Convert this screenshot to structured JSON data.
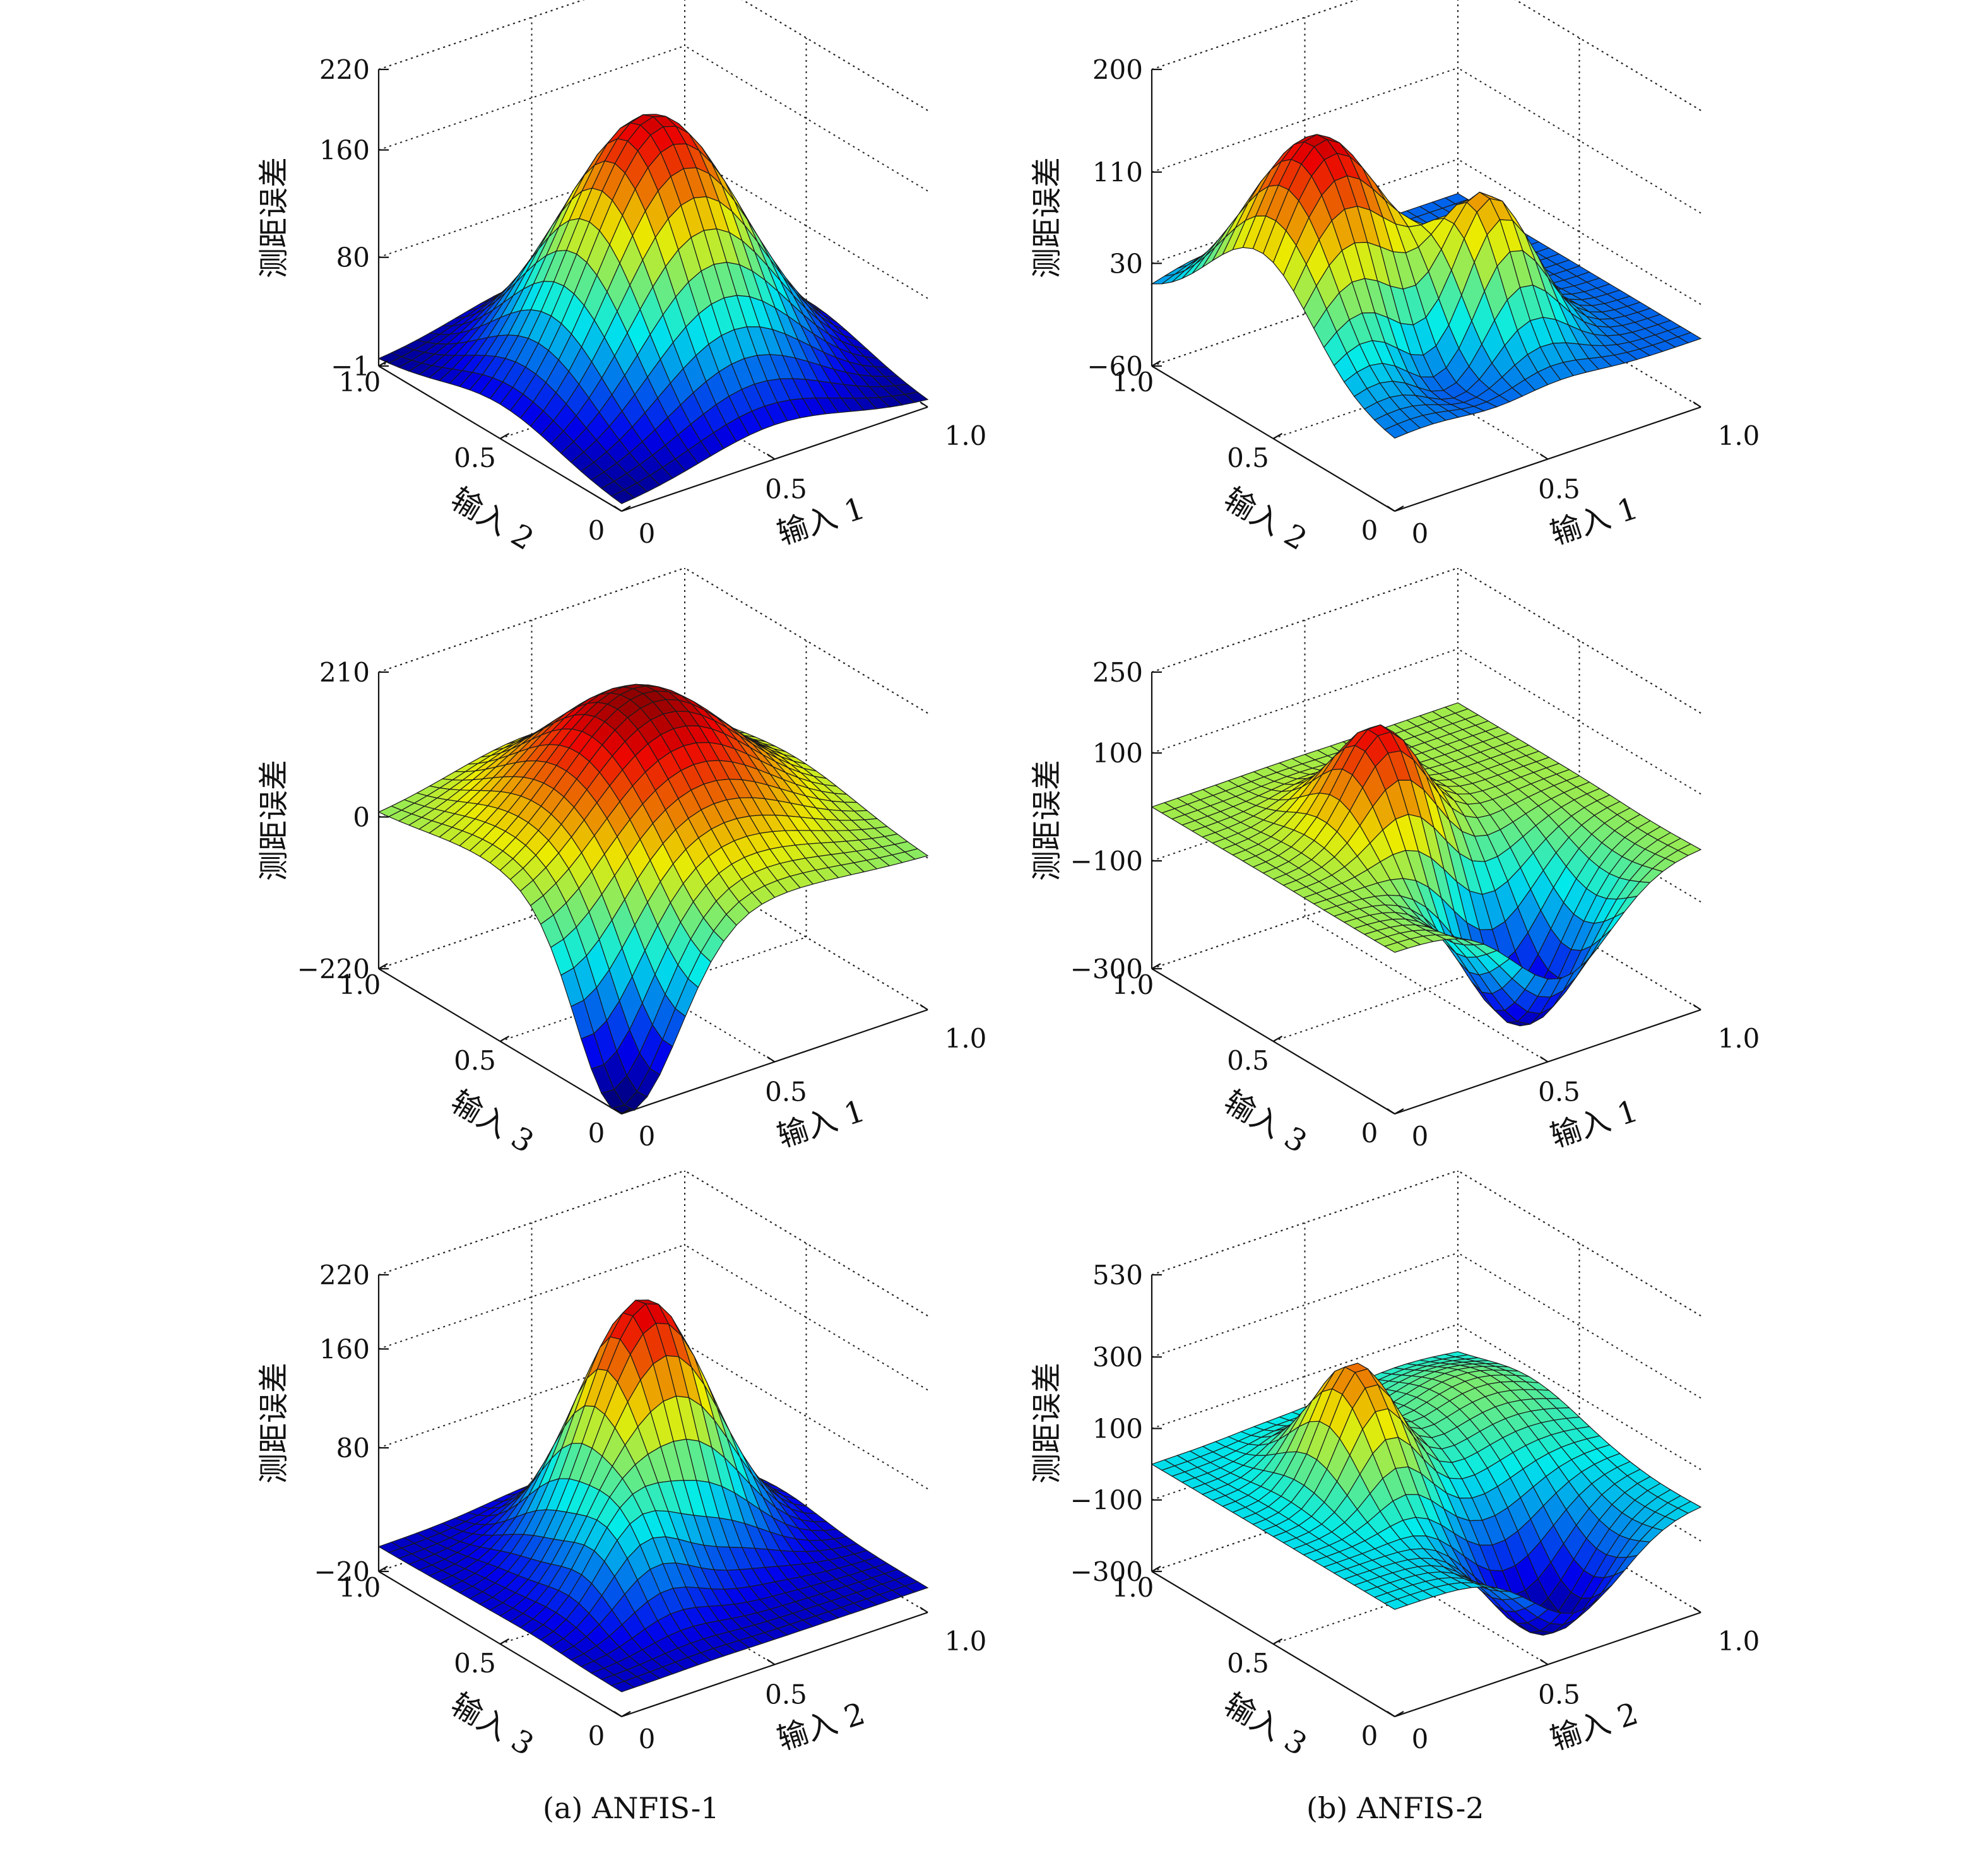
{
  "figure": {
    "caption_a": "(a) ANFIS-1",
    "caption_b": "(b) ANFIS-2"
  },
  "chart_data": [
    {
      "type": "surface",
      "panel": "a-1",
      "zlabel": "测距误差",
      "xlabel": "输入 1",
      "ylabel": "输入 2",
      "zticks": [
        "−1",
        "80",
        "160",
        "220"
      ],
      "zlim": [
        -1,
        220
      ],
      "xticks": [
        "0",
        "0.5",
        "1.0"
      ],
      "yticks": [
        "0",
        "0.5",
        "1.0"
      ],
      "x_range": [
        0,
        1
      ],
      "y_range": [
        0,
        1
      ],
      "surface_model": {
        "base": 2,
        "bumps": [
          {
            "x": 0.5,
            "y": 0.5,
            "amp": 198,
            "sx": 0.24,
            "sy": 0.24
          }
        ]
      }
    },
    {
      "type": "surface",
      "panel": "b-1",
      "zlabel": "测距误差",
      "xlabel": "输入 1",
      "ylabel": "输入 2",
      "zticks": [
        "−60",
        "30",
        "110",
        "200"
      ],
      "zlim": [
        -60,
        200
      ],
      "xticks": [
        "0",
        "0.5",
        "1.0"
      ],
      "yticks": [
        "0",
        "0.5",
        "1.0"
      ],
      "x_range": [
        0,
        1
      ],
      "y_range": [
        0,
        1
      ],
      "surface_model": {
        "base": 0,
        "bumps": [
          {
            "x": 0.2,
            "y": 0.55,
            "amp": 180,
            "sx": 0.18,
            "sy": 0.22
          },
          {
            "x": 0.55,
            "y": 0.3,
            "amp": 120,
            "sx": 0.12,
            "sy": 0.12
          },
          {
            "x": 0.3,
            "y": 0.25,
            "amp": -55,
            "sx": 0.12,
            "sy": 0.12
          }
        ]
      }
    },
    {
      "type": "surface",
      "panel": "a-2",
      "zlabel": "测距误差",
      "xlabel": "输入 1",
      "ylabel": "输入 3",
      "zticks": [
        "−220",
        "0",
        "210"
      ],
      "zlim": [
        -220,
        210
      ],
      "xticks": [
        "0",
        "0.5",
        "1.0"
      ],
      "yticks": [
        "0",
        "0.5",
        "1.0"
      ],
      "x_range": [
        0,
        1
      ],
      "y_range": [
        0,
        1
      ],
      "surface_model": {
        "base": 0,
        "bumps": [
          {
            "x": 0.5,
            "y": 0.55,
            "amp": 200,
            "sx": 0.26,
            "sy": 0.26
          },
          {
            "x": 0.03,
            "y": 0.03,
            "amp": -230,
            "sx": 0.16,
            "sy": 0.16
          }
        ]
      }
    },
    {
      "type": "surface",
      "panel": "b-2",
      "zlabel": "测距误差",
      "xlabel": "输入 1",
      "ylabel": "输入 3",
      "zticks": [
        "−300",
        "−100",
        "100",
        "250"
      ],
      "zlim": [
        -300,
        250
      ],
      "xticks": [
        "0",
        "0.5",
        "1.0"
      ],
      "yticks": [
        "0",
        "0.5",
        "1.0"
      ],
      "x_range": [
        0,
        1
      ],
      "y_range": [
        0,
        1
      ],
      "surface_model": {
        "base": 0,
        "bumps": [
          {
            "x": 0.4,
            "y": 0.55,
            "amp": 200,
            "sx": 0.12,
            "sy": 0.14
          },
          {
            "x": 0.55,
            "y": 0.18,
            "amp": -290,
            "sx": 0.16,
            "sy": 0.16
          }
        ]
      }
    },
    {
      "type": "surface",
      "panel": "a-3",
      "zlabel": "测距误差",
      "xlabel": "输入 2",
      "ylabel": "输入 3",
      "zticks": [
        "−20",
        "80",
        "160",
        "220"
      ],
      "zlim": [
        -20,
        220
      ],
      "xticks": [
        "0",
        "0.5",
        "1.0"
      ],
      "yticks": [
        "0",
        "0.5",
        "1.0"
      ],
      "x_range": [
        0,
        1
      ],
      "y_range": [
        0,
        1
      ],
      "surface_model": {
        "base": 0,
        "bumps": [
          {
            "x": 0.55,
            "y": 0.6,
            "amp": 200,
            "sx": 0.18,
            "sy": 0.16
          },
          {
            "x": 0.3,
            "y": 0.35,
            "amp": 55,
            "sx": 0.12,
            "sy": 0.12
          }
        ]
      }
    },
    {
      "type": "surface",
      "panel": "b-3",
      "zlabel": "测距误差",
      "xlabel": "输入 2",
      "ylabel": "输入 3",
      "zticks": [
        "−300",
        "−100",
        "100",
        "300",
        "530"
      ],
      "zlim": [
        -300,
        530
      ],
      "xticks": [
        "0",
        "0.5",
        "1.0"
      ],
      "yticks": [
        "0",
        "0.5",
        "1.0"
      ],
      "x_range": [
        0,
        1
      ],
      "y_range": [
        0,
        1
      ],
      "surface_model": {
        "base": 0,
        "bumps": [
          {
            "x": 0.35,
            "y": 0.6,
            "amp": 330,
            "sx": 0.1,
            "sy": 0.14
          },
          {
            "x": 0.6,
            "y": 0.15,
            "amp": -300,
            "sx": 0.15,
            "sy": 0.15
          },
          {
            "x": 0.8,
            "y": 0.7,
            "amp": 120,
            "sx": 0.2,
            "sy": 0.2
          }
        ]
      }
    }
  ]
}
